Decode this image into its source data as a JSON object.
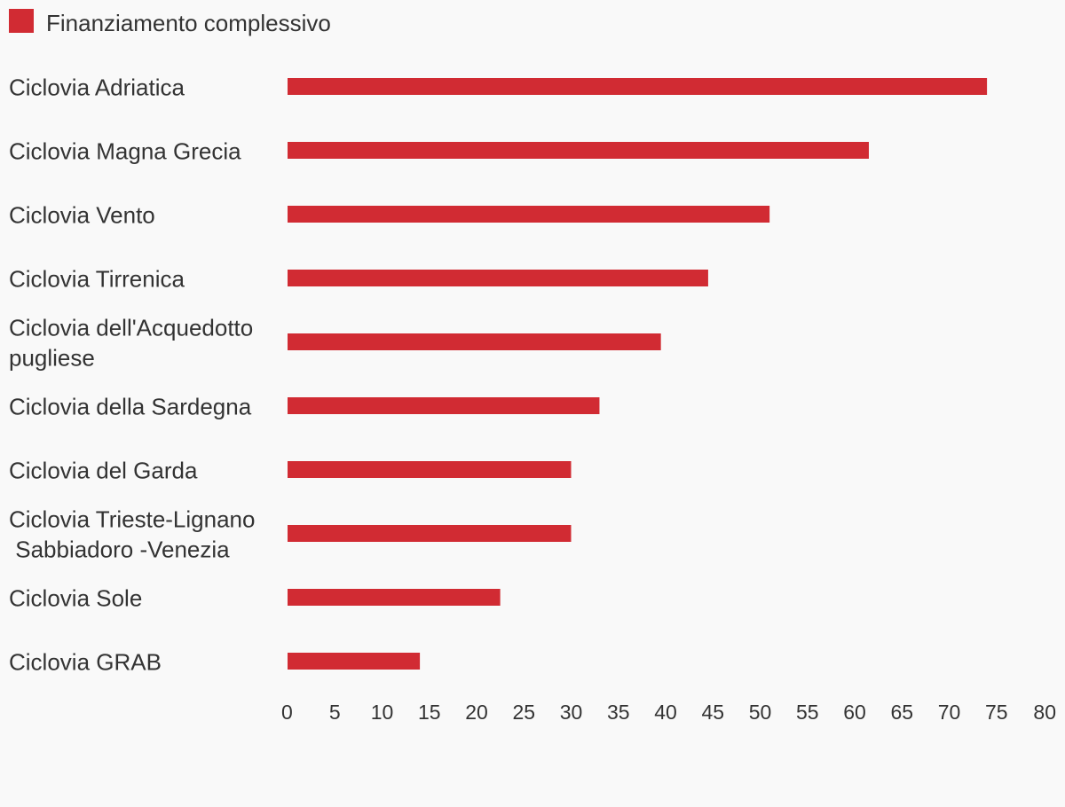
{
  "chart_data": {
    "type": "bar",
    "orientation": "horizontal",
    "legend": {
      "position": "top-left",
      "entries": [
        "Finanziamento complessivo"
      ]
    },
    "series": [
      {
        "name": "Finanziamento complessivo",
        "color": "#d12b33",
        "values": [
          74,
          61.5,
          51,
          44.5,
          39.5,
          33,
          30,
          30,
          22.5,
          14
        ]
      }
    ],
    "categories": [
      [
        "Ciclovia Adriatica"
      ],
      [
        "Ciclovia Magna Grecia"
      ],
      [
        "Ciclovia Vento"
      ],
      [
        "Ciclovia Tirrenica"
      ],
      [
        "Ciclovia dell'Acquedotto",
        "pugliese"
      ],
      [
        "Ciclovia della Sardegna"
      ],
      [
        "Ciclovia del Garda"
      ],
      [
        "Ciclovia Trieste-Lignano",
        " Sabbiadoro -Venezia"
      ],
      [
        "Ciclovia Sole"
      ],
      [
        "Ciclovia GRAB"
      ]
    ],
    "xaxis": {
      "ticks": [
        "0",
        "5",
        "10",
        "15",
        "20",
        "25",
        "30",
        "35",
        "40",
        "45",
        "50",
        "55",
        "60",
        "65",
        "70",
        "75",
        "80"
      ],
      "xlim": [
        0,
        80
      ]
    },
    "grid": false
  }
}
